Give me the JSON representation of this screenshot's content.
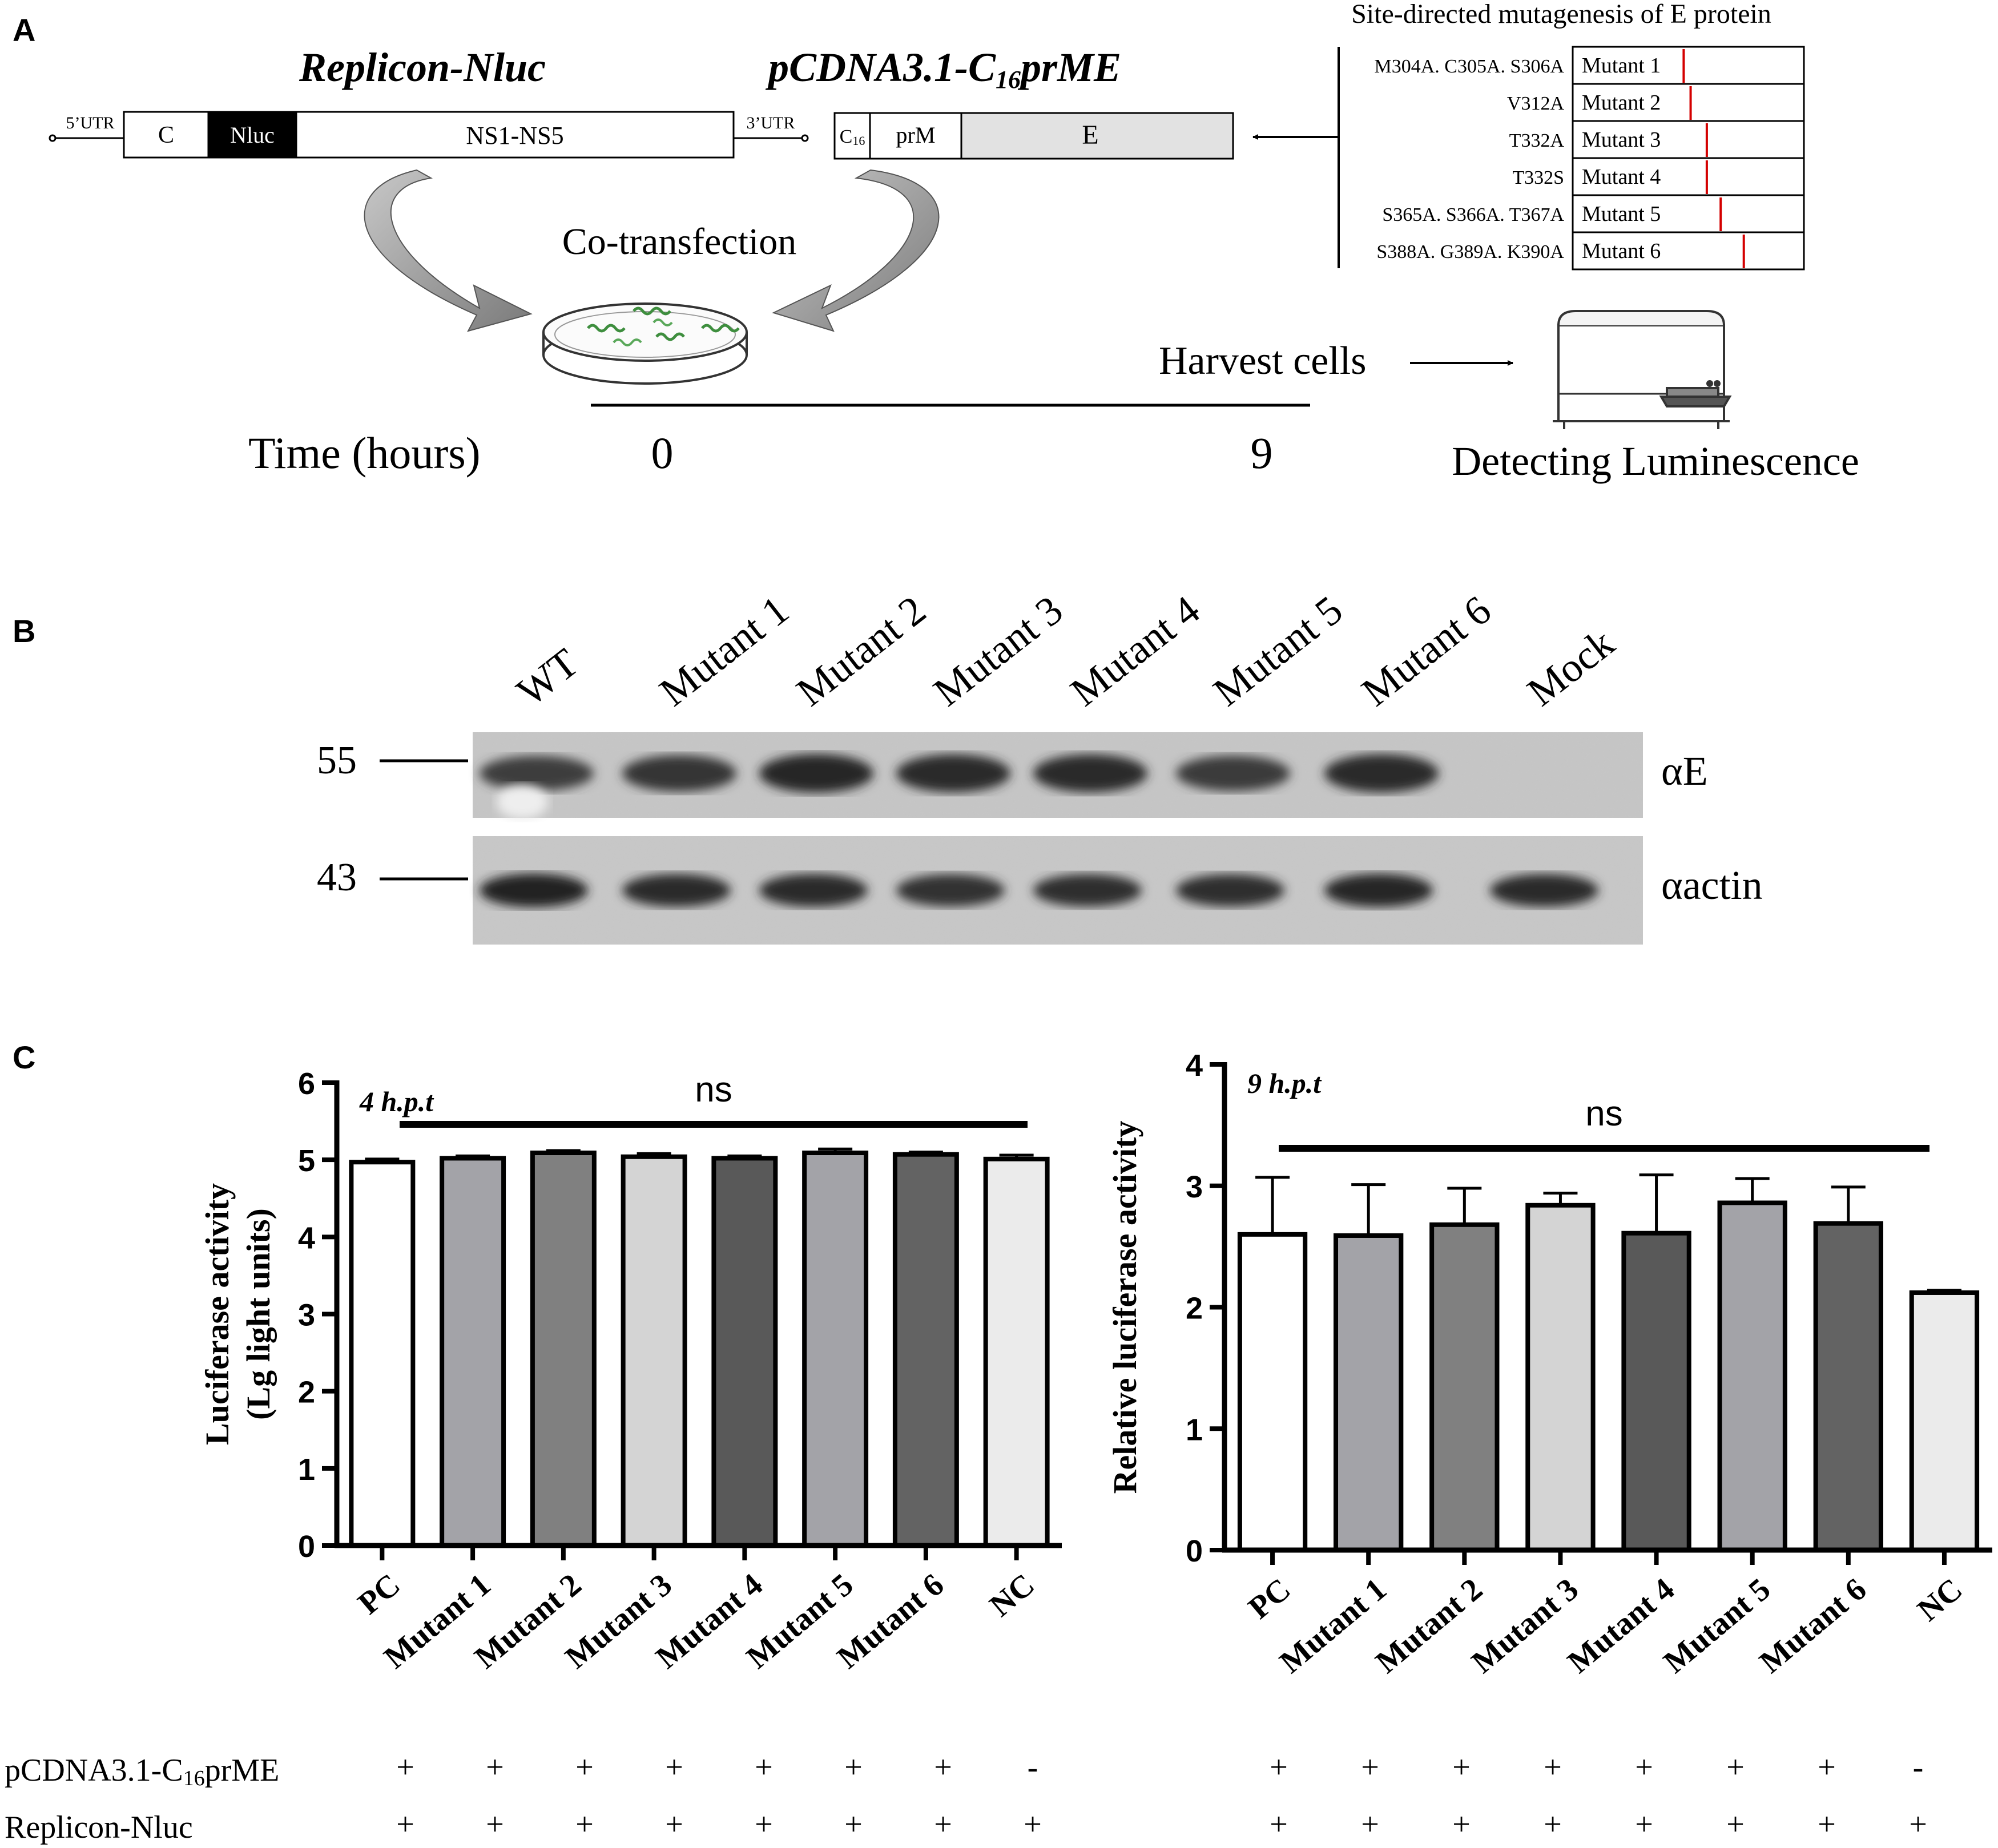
{
  "panel_labels": [
    "A",
    "B",
    "C"
  ],
  "panel_a": {
    "replicon_title": "Replicon-Nluc",
    "replicon_segments": [
      "C",
      "Nluc",
      "NS1-NS5"
    ],
    "utr5": "5’UTR",
    "utr3": "3’UTR",
    "pcdna_title_main": "pCDNA3.1-C",
    "pcdna_title_sub": "16",
    "pcdna_title_tail": "prME",
    "pcdna_segments": {
      "c_main": "C",
      "c_sub": "16",
      "prm": "prM",
      "e": "E"
    },
    "mutagenesis_title": "Site-directed mutagenesis of E protein",
    "mutants": [
      {
        "sites": "M304A. C305A. S306A",
        "name": "Mutant 1",
        "mark": 0.48
      },
      {
        "sites": "V312A",
        "name": "Mutant 2",
        "mark": 0.51
      },
      {
        "sites": "T332A",
        "name": "Mutant 3",
        "mark": 0.58
      },
      {
        "sites": "T332S",
        "name": "Mutant 4",
        "mark": 0.58
      },
      {
        "sites": "S365A. S366A. T367A",
        "name": "Mutant 5",
        "mark": 0.64
      },
      {
        "sites": "S388A. G389A. K390A",
        "name": "Mutant 6",
        "mark": 0.74
      }
    ],
    "cotransfection": "Co-transfection",
    "harvest": "Harvest cells",
    "time_label": "Time (hours)",
    "time_start": "0",
    "time_end": "9",
    "detect": "Detecting Luminescence"
  },
  "panel_b": {
    "lanes": [
      "WT",
      "Mutant 1",
      "Mutant 2",
      "Mutant 3",
      "Mutant 4",
      "Mutant 5",
      "Mutant 6",
      "Mock"
    ],
    "markers": [
      "55",
      "43"
    ],
    "antibodies": [
      "αE",
      "αactin"
    ],
    "e_band_intensity": [
      0.78,
      0.86,
      1.0,
      0.96,
      0.96,
      0.8,
      0.98,
      0.0
    ],
    "actin_band_intensity": [
      0.95,
      0.85,
      0.88,
      0.8,
      0.82,
      0.82,
      0.92,
      0.85
    ]
  },
  "chart_data": [
    {
      "type": "bar",
      "title": "4 h.p.t",
      "ylabel_lines": [
        "Luciferase activity",
        "(Lg light units)"
      ],
      "categories": [
        "PC",
        "Mutant 1",
        "Mutant 2",
        "Mutant 3",
        "Mutant 4",
        "Mutant 5",
        "Mutant 6",
        "NC"
      ],
      "values": [
        4.97,
        5.02,
        5.09,
        5.04,
        5.02,
        5.09,
        5.07,
        5.01
      ],
      "errors": [
        0.04,
        0.03,
        0.03,
        0.04,
        0.03,
        0.05,
        0.03,
        0.05
      ],
      "ylim": [
        0,
        6
      ],
      "yticks": [
        "0",
        "1",
        "2",
        "3",
        "4",
        "5",
        "6"
      ],
      "significance": "ns",
      "bar_colors": [
        "#ffffff",
        "#a3a3a8",
        "#808080",
        "#d4d4d4",
        "#595959",
        "#a3a3a8",
        "#636363",
        "#ebebeb"
      ]
    },
    {
      "type": "bar",
      "title": "9 h.p.t",
      "ylabel_lines": [
        "Relative luciferase activity"
      ],
      "categories": [
        "PC",
        "Mutant 1",
        "Mutant 2",
        "Mutant 3",
        "Mutant 4",
        "Mutant 5",
        "Mutant 6",
        "NC"
      ],
      "values": [
        2.6,
        2.59,
        2.68,
        2.84,
        2.61,
        2.86,
        2.69,
        2.12
      ],
      "errors": [
        0.47,
        0.42,
        0.3,
        0.1,
        0.48,
        0.2,
        0.3,
        0.02
      ],
      "ylim": [
        0,
        4
      ],
      "yticks": [
        "0",
        "1",
        "2",
        "3",
        "4"
      ],
      "significance": "ns",
      "bar_colors": [
        "#ffffff",
        "#a3a3a8",
        "#808080",
        "#d4d4d4",
        "#595959",
        "#a3a3a8",
        "#636363",
        "#ebebeb"
      ]
    }
  ],
  "conditions": {
    "row1_label_main": "pCDNA3.1-C",
    "row1_label_sub": "16",
    "row1_label_tail": "prME",
    "row2_label": "Replicon-Nluc",
    "row1": [
      "+",
      "+",
      "+",
      "+",
      "+",
      "+",
      "+",
      "-"
    ],
    "row2": [
      "+",
      "+",
      "+",
      "+",
      "+",
      "+",
      "+",
      "+"
    ]
  }
}
